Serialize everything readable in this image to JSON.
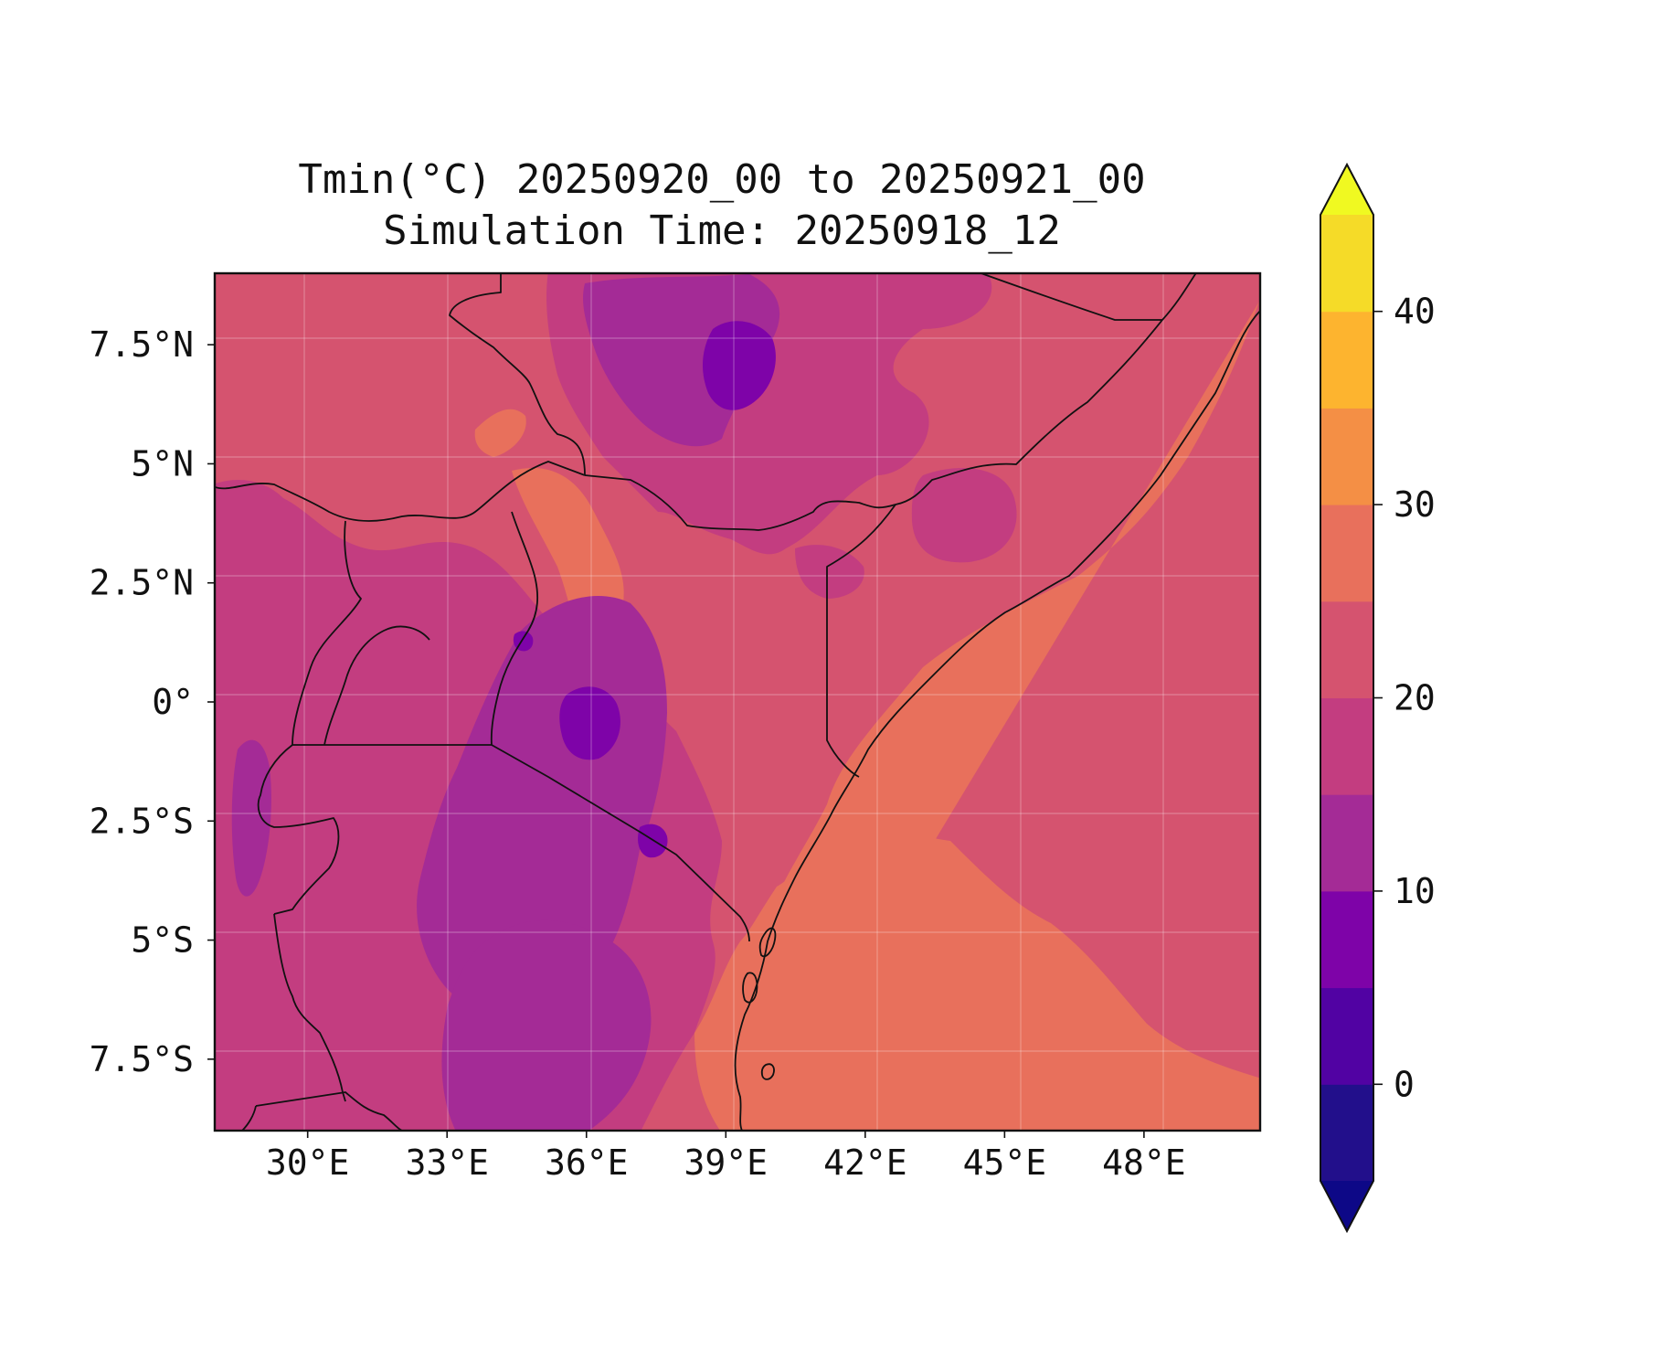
{
  "title_line1": "Tmin(°C) 20250920_00 to 20250921_00",
  "title_line2": "Simulation Time: 20250918_12",
  "map": {
    "lon_range": [
      28,
      50.5
    ],
    "lat_range": [
      -9,
      9
    ],
    "x_ticks": [
      "30°E",
      "33°E",
      "36°E",
      "39°E",
      "42°E",
      "45°E",
      "48°E"
    ],
    "y_ticks": [
      "7.5°N",
      "5°N",
      "2.5°N",
      "0°",
      "2.5°S",
      "5°S",
      "7.5°S"
    ],
    "gridlines": true
  },
  "colorbar": {
    "colormap": "plasma",
    "levels": [
      -5,
      0,
      5,
      10,
      15,
      20,
      25,
      30,
      35,
      40,
      45
    ],
    "colors": [
      "#220f8b",
      "#5102a3",
      "#7e03a8",
      "#a42b96",
      "#c33d80",
      "#d5536f",
      "#e8705c",
      "#f48f45",
      "#fdb42f",
      "#f5db28"
    ],
    "under_color": "#0d0887",
    "over_color": "#f0f921",
    "tick_labels": [
      "0",
      "10",
      "20",
      "30",
      "40"
    ],
    "extend": "both"
  },
  "chart_data": {
    "type": "heatmap",
    "title": "Tmin(°C) 20250920_00 to 20250921_00",
    "subtitle": "Simulation Time: 20250918_12",
    "xlabel": "",
    "ylabel": "",
    "x_ticks": [
      "30°E",
      "33°E",
      "36°E",
      "39°E",
      "42°E",
      "45°E",
      "48°E"
    ],
    "y_ticks": [
      "7.5°N",
      "5°N",
      "2.5°N",
      "0°",
      "2.5°S",
      "5°S",
      "7.5°S"
    ],
    "xlim": [
      28,
      50.5
    ],
    "ylim": [
      -9,
      9
    ],
    "colorbar_range": [
      -5,
      45
    ],
    "colorbar_ticks": [
      0,
      10,
      20,
      30,
      40
    ],
    "colorbar_labels": [
      "0",
      "10",
      "20",
      "30",
      "40"
    ],
    "grid": true
  }
}
